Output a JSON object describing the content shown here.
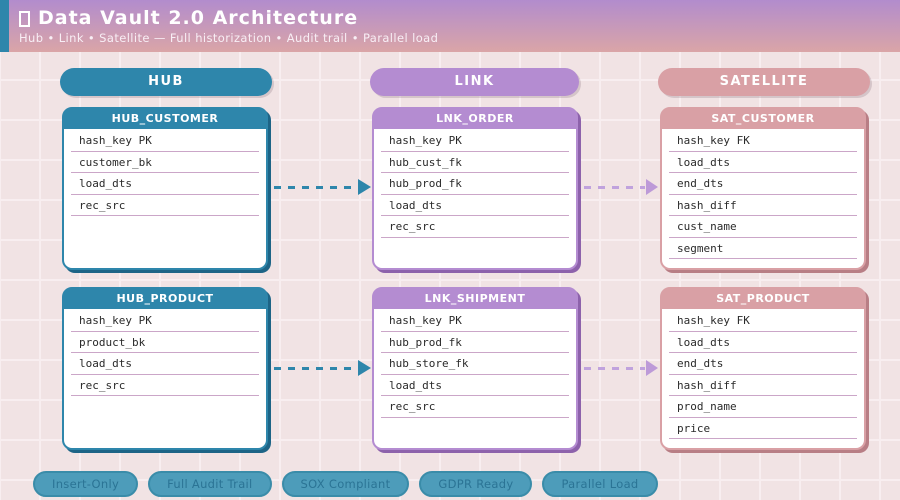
{
  "header": {
    "icon": "missing-glyph-box",
    "title": "Data Vault 2.0 Architecture",
    "subtitle": "Hub • Link • Satellite — Full historization • Audit trail • Parallel load"
  },
  "colors": {
    "hub": "#2e86ab",
    "link": "#b48cd1",
    "satellite": "#d9a0a5",
    "background": "#f1e3e4",
    "header_gradient_top": "#b28ccd",
    "header_gradient_bottom": "#daa5a7"
  },
  "columns": [
    {
      "label": "HUB",
      "tables": [
        {
          "name": "HUB_CUSTOMER",
          "fields": [
            "hash_key PK",
            "customer_bk",
            "load_dts",
            "rec_src"
          ]
        },
        {
          "name": "HUB_PRODUCT",
          "fields": [
            "hash_key PK",
            "product_bk",
            "load_dts",
            "rec_src"
          ]
        }
      ]
    },
    {
      "label": "LINK",
      "tables": [
        {
          "name": "LNK_ORDER",
          "fields": [
            "hash_key PK",
            "hub_cust_fk",
            "hub_prod_fk",
            "load_dts",
            "rec_src"
          ]
        },
        {
          "name": "LNK_SHIPMENT",
          "fields": [
            "hash_key PK",
            "hub_prod_fk",
            "hub_store_fk",
            "load_dts",
            "rec_src"
          ]
        }
      ]
    },
    {
      "label": "SATELLITE",
      "tables": [
        {
          "name": "SAT_CUSTOMER",
          "fields": [
            "hash_key FK",
            "load_dts",
            "end_dts",
            "hash_diff",
            "cust_name",
            "segment"
          ]
        },
        {
          "name": "SAT_PRODUCT",
          "fields": [
            "hash_key FK",
            "load_dts",
            "end_dts",
            "hash_diff",
            "prod_name",
            "price"
          ]
        }
      ]
    }
  ],
  "footer": {
    "badges": [
      "Insert-Only",
      "Full Audit Trail",
      "SOX Compliant",
      "GDPR Ready",
      "Parallel Load"
    ]
  }
}
